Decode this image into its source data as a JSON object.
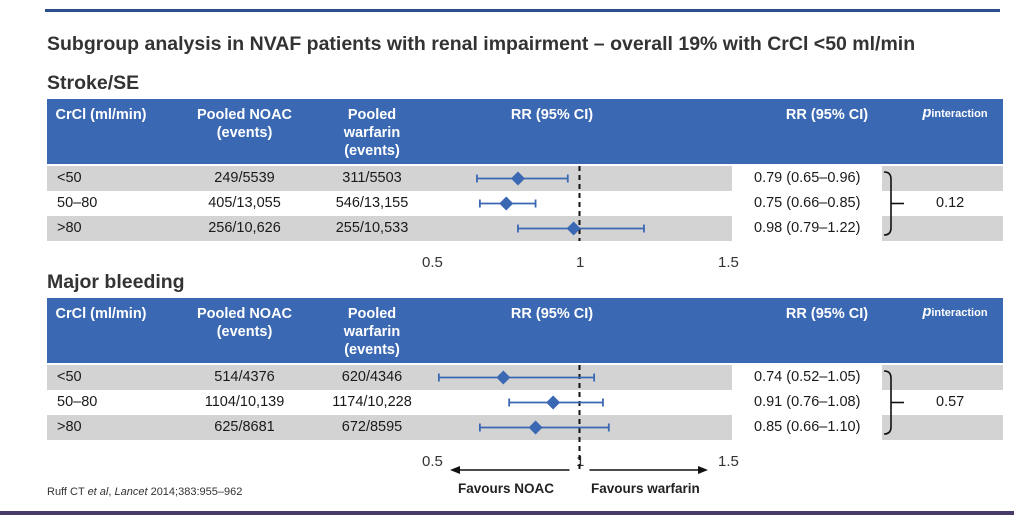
{
  "title": "Subgroup analysis in NVAF patients with renal impairment – overall 19% with CrCl <50 ml/min",
  "columns": {
    "crcl": "CrCl (ml/min)",
    "noac": "Pooled NOAC\n(events)",
    "warfarin": "Pooled\nwarfarin\n(events)",
    "rr_plot": "RR (95% CI)",
    "rr_text": "RR (95% CI)",
    "p_main": "p",
    "p_sub": "interaction"
  },
  "stroke": {
    "section": "Stroke/SE",
    "p_interaction": "0.12",
    "rows": [
      {
        "crcl": "<50",
        "noac": "249/5539",
        "warfarin": "311/5503",
        "rr_text": "0.79 (0.65–0.96)"
      },
      {
        "crcl": "50–80",
        "noac": "405/13,055",
        "warfarin": "546/13,155",
        "rr_text": "0.75 (0.66–0.85)"
      },
      {
        "crcl": ">80",
        "noac": "256/10,626",
        "warfarin": "255/10,533",
        "rr_text": "0.98 (0.79–1.22)"
      }
    ],
    "ticks": [
      "0.5",
      "1",
      "1.5"
    ]
  },
  "bleeding": {
    "section": "Major bleeding",
    "p_interaction": "0.57",
    "rows": [
      {
        "crcl": "<50",
        "noac": "514/4376",
        "warfarin": "620/4346",
        "rr_text": "0.74 (0.52–1.05)"
      },
      {
        "crcl": "50–80",
        "noac": "1104/10,139",
        "warfarin": "1174/10,228",
        "rr_text": "0.91 (0.76–1.08)"
      },
      {
        "crcl": ">80",
        "noac": "625/8681",
        "warfarin": "672/8595",
        "rr_text": "0.85 (0.66–1.10)"
      }
    ],
    "ticks": [
      "0.5",
      "1",
      "1.5"
    ]
  },
  "favours_left": "Favours NOAC",
  "favours_right": "Favours warfarin",
  "citation_authors": "Ruff CT ",
  "citation_etal": "et al",
  "citation_sep": ", ",
  "citation_journal": "Lancet",
  "citation_rest": " 2014;383:955–962",
  "colors": {
    "header": "#3a68b3",
    "marker": "#3a68b3",
    "shade": "#d3d3d3"
  },
  "chart_data": [
    {
      "type": "forest",
      "title": "Stroke/SE",
      "xlabel": "RR (95% CI)",
      "xlim": [
        0.5,
        1.5
      ],
      "reference_line": 1,
      "categories": [
        "<50",
        "50–80",
        ">80"
      ],
      "points": [
        {
          "rr": 0.79,
          "lo": 0.65,
          "hi": 0.96
        },
        {
          "rr": 0.75,
          "lo": 0.66,
          "hi": 0.85
        },
        {
          "rr": 0.98,
          "lo": 0.79,
          "hi": 1.22
        }
      ]
    },
    {
      "type": "forest",
      "title": "Major bleeding",
      "xlabel": "RR (95% CI)",
      "xlim": [
        0.5,
        1.5
      ],
      "reference_line": 1,
      "categories": [
        "<50",
        "50–80",
        ">80"
      ],
      "points": [
        {
          "rr": 0.74,
          "lo": 0.52,
          "hi": 1.05
        },
        {
          "rr": 0.91,
          "lo": 0.76,
          "hi": 1.08
        },
        {
          "rr": 0.85,
          "lo": 0.66,
          "hi": 1.1
        }
      ]
    }
  ]
}
